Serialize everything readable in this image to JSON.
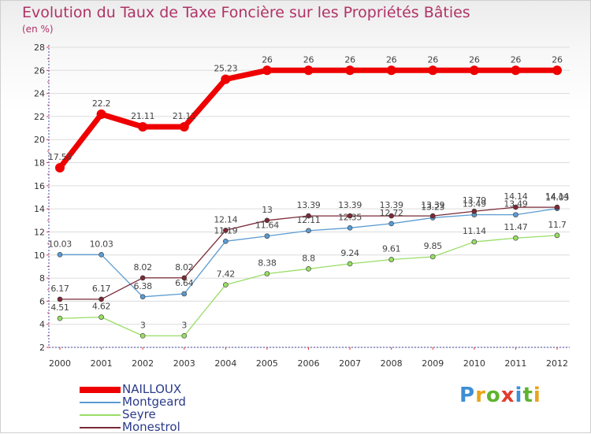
{
  "header": {
    "title": "Evolution du Taux de Taxe Foncière sur les Propriétés Bâties",
    "units": "(en %)"
  },
  "logo": {
    "text": "Proxiti",
    "letter_colors": [
      "#3d8fd6",
      "#e8a41a",
      "#5fb32e",
      "#e23b2e",
      "#3d8fd6",
      "#5fb32e",
      "#e8a41a"
    ]
  },
  "chart_data": {
    "type": "line",
    "title": "Evolution du Taux de Taxe Foncière sur les Propriétés Bâties",
    "ylabel": "(en %)",
    "xlabel": "",
    "x": [
      "2000",
      "2001",
      "2002",
      "2003",
      "2004",
      "2005",
      "2006",
      "2007",
      "2008",
      "2009",
      "2010",
      "2011",
      "2012"
    ],
    "ylim": [
      2,
      28
    ],
    "yticks": [
      2,
      4,
      6,
      8,
      10,
      12,
      14,
      16,
      18,
      20,
      22,
      24,
      26,
      28
    ],
    "grid": "horizontal",
    "legend_position": "bottom-left",
    "series": [
      {
        "name": "NAILLOUX",
        "color": "#ee0000",
        "emphasis": "thick",
        "values": [
          17.56,
          22.2,
          21.11,
          21.11,
          25.23,
          26,
          26,
          26,
          26,
          26,
          26,
          26,
          26
        ],
        "labels": [
          "17.56",
          "22.2",
          "21.11",
          "21.11",
          "25.23",
          "26",
          "26",
          "26",
          "26",
          "26",
          "26",
          "26",
          "26"
        ]
      },
      {
        "name": "Montgeard",
        "color": "#5b9bd1",
        "emphasis": "thin",
        "values": [
          10.03,
          10.03,
          6.38,
          6.64,
          11.19,
          11.64,
          12.11,
          12.35,
          12.72,
          13.23,
          13.49,
          13.49,
          14.03
        ],
        "labels": [
          "10.03",
          "10.03",
          "6.38",
          "6.64",
          "11.19",
          "11.64",
          "12.11",
          "12.35",
          "12.72",
          "13.23",
          "13.49",
          "13.49",
          "14.03"
        ]
      },
      {
        "name": "Seyre",
        "color": "#99dd66",
        "emphasis": "thin",
        "values": [
          4.51,
          4.62,
          3,
          3,
          7.42,
          8.38,
          8.8,
          9.24,
          9.61,
          9.85,
          11.14,
          11.47,
          11.7
        ],
        "labels": [
          "4.51",
          "4.62",
          "3",
          "3",
          "7.42",
          "8.38",
          "8.8",
          "9.24",
          "9.61",
          "9.85",
          "11.14",
          "11.47",
          "11.7"
        ]
      },
      {
        "name": "Monestrol",
        "color": "#7a2a36",
        "emphasis": "thin",
        "values": [
          6.17,
          6.17,
          8.02,
          8.02,
          12.14,
          13,
          13.39,
          13.39,
          13.39,
          13.39,
          13.79,
          14.14,
          14.14
        ],
        "labels": [
          "6.17",
          "6.17",
          "8.02",
          "8.02",
          "12.14",
          "13",
          "13.39",
          "13.39",
          "13.39",
          "13.39",
          "13.79",
          "14.14",
          "14.14"
        ]
      }
    ]
  }
}
